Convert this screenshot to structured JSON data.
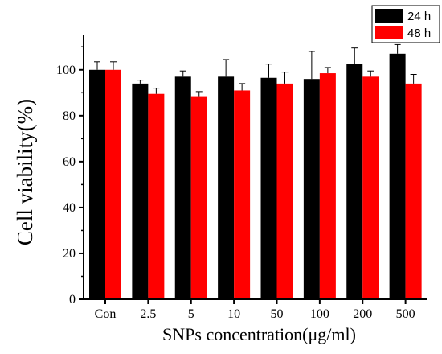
{
  "chart_data": {
    "type": "bar",
    "title": "",
    "xlabel": "SNPs concentration(μg/ml)",
    "ylabel": "Cell viability(%)",
    "ylim": [
      0,
      115
    ],
    "yticks": [
      0,
      20,
      40,
      60,
      80,
      100
    ],
    "categories": [
      "Con",
      "2.5",
      "5",
      "10",
      "50",
      "100",
      "200",
      "500"
    ],
    "series": [
      {
        "name": "24 h",
        "color": "#000000",
        "values": [
          100,
          94,
          97,
          97,
          96.5,
          96,
          102.5,
          107
        ],
        "errors": [
          3.5,
          1.5,
          2.5,
          7.5,
          6,
          12,
          7,
          4
        ]
      },
      {
        "name": "48 h",
        "color": "#ff0000",
        "values": [
          100,
          89.5,
          88.5,
          91,
          94,
          98.5,
          97,
          94
        ],
        "errors": [
          3.5,
          2.5,
          2,
          3,
          5,
          2.5,
          2.5,
          4
        ]
      }
    ],
    "legend_position": "top-right",
    "grid": false
  }
}
